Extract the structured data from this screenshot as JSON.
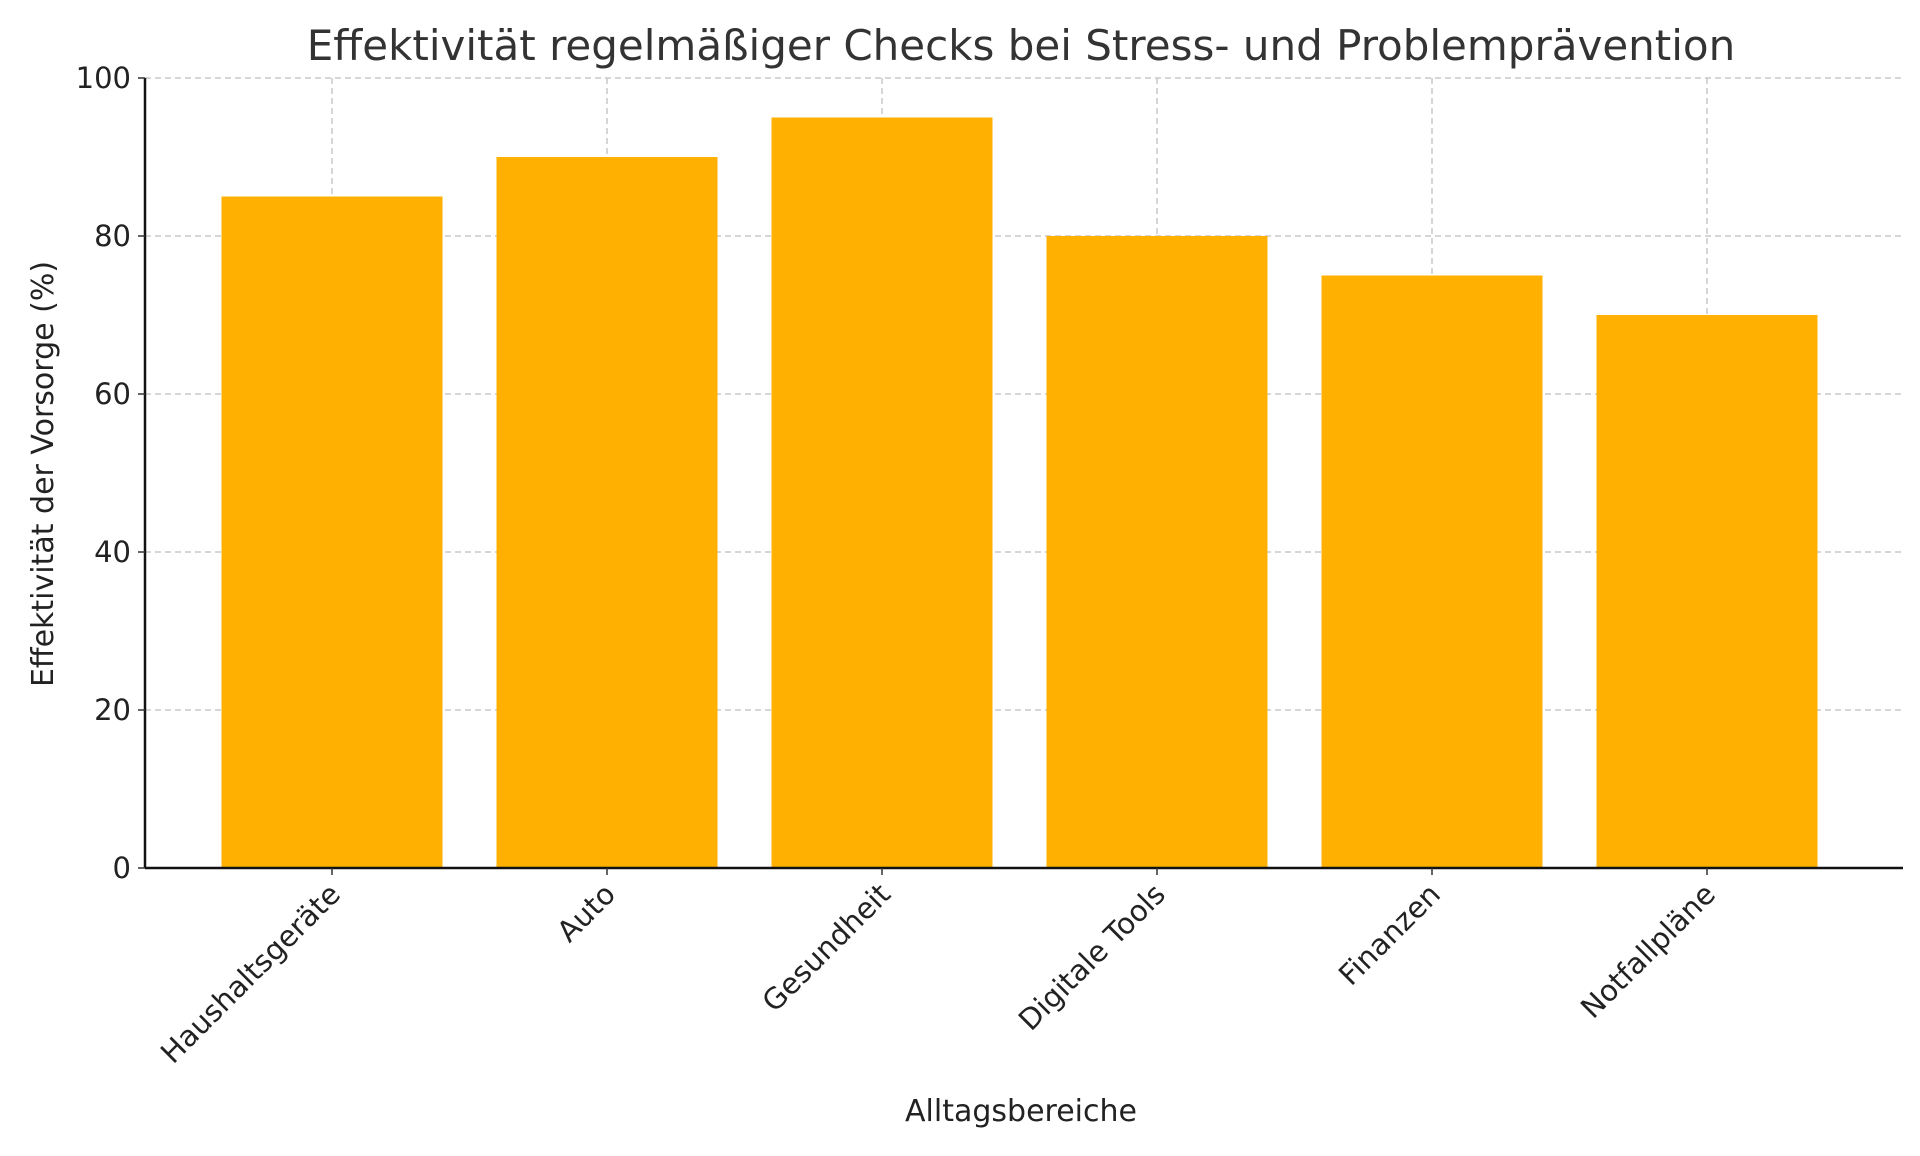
{
  "chart_data": {
    "type": "bar",
    "title": "Effektivität regelmäßiger Checks bei Stress- und Problemprävention",
    "xlabel": "Alltagsbereiche",
    "ylabel": "Effektivität der Vorsorge (%)",
    "categories": [
      "Haushaltsgeräte",
      "Auto",
      "Gesundheit",
      "Digitale Tools",
      "Finanzen",
      "Notfallpläne"
    ],
    "values": [
      85,
      90,
      95,
      80,
      75,
      70
    ],
    "ylim": [
      0,
      100
    ],
    "yticks": [
      0,
      20,
      40,
      60,
      80,
      100
    ],
    "grid": true,
    "bar_color": "#FFB000"
  }
}
